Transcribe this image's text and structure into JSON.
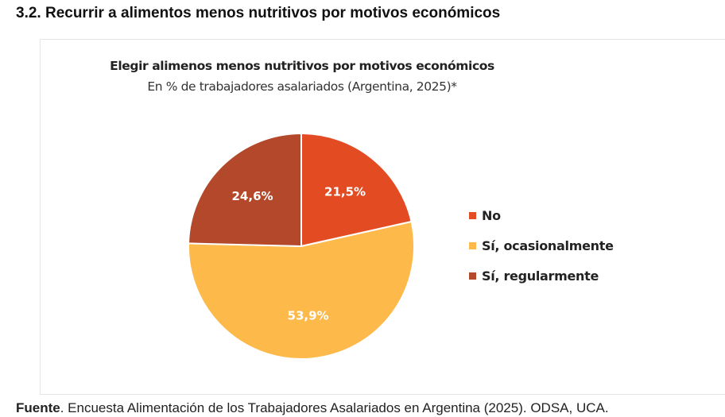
{
  "section_title": "3.2. Recurrir a alimentos menos nutritivos por motivos económicos",
  "chart_data": {
    "type": "pie",
    "title": "Elegir alimenos menos nutritivos por motivos económicos",
    "subtitle": "En % de trabajadores asalariados (Argentina, 2025)*",
    "categories": [
      "No",
      "Sí, ocasionalmente",
      "Sí, regularmente"
    ],
    "values": [
      21.5,
      53.9,
      24.6
    ],
    "labels": [
      "21,5%",
      "53,9%",
      "24,6%"
    ],
    "colors": [
      "#E34B22",
      "#FDB94A",
      "#B3482A"
    ],
    "start_angle": "12 o'clock, clockwise",
    "legend_position": "right"
  },
  "footer": {
    "label": "Fuente",
    "text": ". Encuesta Alimentación de los Trabajadores Asalariados en Argentina (2025). ODSA, UCA."
  }
}
